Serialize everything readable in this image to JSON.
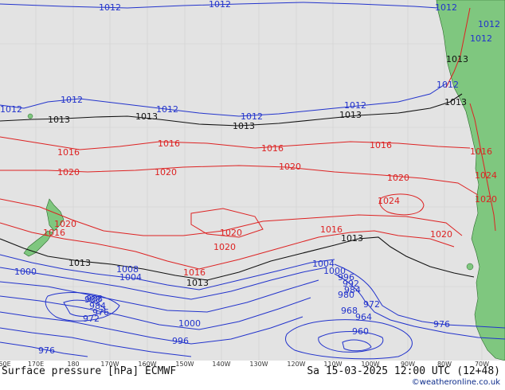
{
  "map": {
    "caption": "Surface pressure [hPa] ECMWF",
    "datetime": "Sa 15-03-2025 12:00 UTC (12+48)",
    "credit": "©weatheronline.co.uk",
    "colors": {
      "ocean": "#e3e3e3",
      "land": "#7fc77f",
      "isobar_high": "#dd2222",
      "isobar_mid": "#111111",
      "isobar_low": "#2233cc"
    },
    "longitude_ticks": [
      "60E",
      "170E",
      "180",
      "170W",
      "160W",
      "150W",
      "140W",
      "130W",
      "120W",
      "110W",
      "100W",
      "90W",
      "80W",
      "70W"
    ],
    "isobar_labels": [
      "1012",
      "1012",
      "1012",
      "1012",
      "1012",
      "1012",
      "1012",
      "1012",
      "1012",
      "1012",
      "1012",
      "1013",
      "1013",
      "1013",
      "1013",
      "1013",
      "1013",
      "1013",
      "1013",
      "1013",
      "1016",
      "1016",
      "1016",
      "1016",
      "1016",
      "1016",
      "1016",
      "1016",
      "1020",
      "1020",
      "1020",
      "1020",
      "1020",
      "1020",
      "1020",
      "1020",
      "1020",
      "1024",
      "1024",
      "1008",
      "1004",
      "1004",
      "1000",
      "1000",
      "1000",
      "996",
      "996",
      "992",
      "988",
      "984",
      "980",
      "976",
      "972",
      "968",
      "964",
      "960",
      "976",
      "976",
      "972",
      "988",
      "984"
    ]
  }
}
